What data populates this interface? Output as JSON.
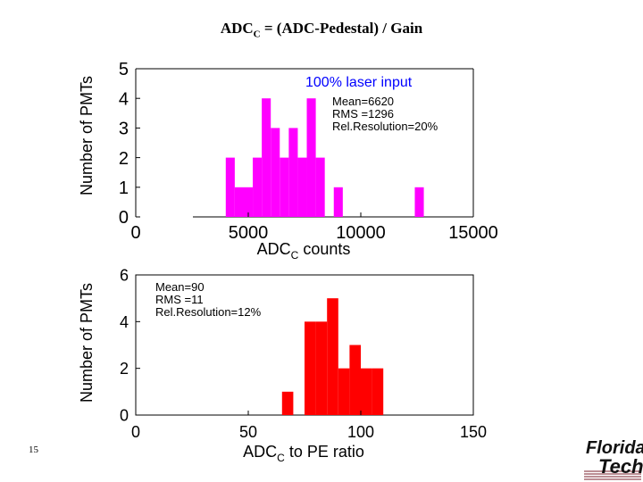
{
  "slide": {
    "title_prefix": "ADC",
    "title_sub": "C",
    "title_suffix": " = (ADC-Pedestal) / Gain",
    "page_number": "15",
    "logo_line1": "Florida",
    "logo_line2": "Tech"
  },
  "chart_data": [
    {
      "type": "histogram",
      "color": "#ff00ff",
      "ylabel": "Number of PMTs",
      "xlabel_prefix": "ADC",
      "xlabel_sub": "C",
      "xlabel_suffix": " counts",
      "xlim": [
        0,
        15000
      ],
      "ylim": [
        0,
        5
      ],
      "xticks": [
        0,
        5000,
        10000,
        15000
      ],
      "yticks": [
        0,
        1,
        2,
        3,
        4,
        5
      ],
      "title_annotation": "100% laser input",
      "title_annotation_color": "#0000ff",
      "stats": [
        "Mean=6620",
        "RMS =1296",
        "Rel.Resolution=20%"
      ],
      "bins": [
        {
          "x0": 4000,
          "x1": 4400,
          "count": 2
        },
        {
          "x0": 4400,
          "x1": 5200,
          "count": 1
        },
        {
          "x0": 5200,
          "x1": 5600,
          "count": 2
        },
        {
          "x0": 5600,
          "x1": 6000,
          "count": 4
        },
        {
          "x0": 6000,
          "x1": 6400,
          "count": 3
        },
        {
          "x0": 6400,
          "x1": 6800,
          "count": 2
        },
        {
          "x0": 6800,
          "x1": 7200,
          "count": 3
        },
        {
          "x0": 7200,
          "x1": 7600,
          "count": 2
        },
        {
          "x0": 7600,
          "x1": 8000,
          "count": 4
        },
        {
          "x0": 8000,
          "x1": 8400,
          "count": 2
        },
        {
          "x0": 8800,
          "x1": 9200,
          "count": 1
        },
        {
          "x0": 12400,
          "x1": 12800,
          "count": 1
        }
      ]
    },
    {
      "type": "histogram",
      "color": "#ff0000",
      "ylabel": "Number of PMTs",
      "xlabel_prefix": "ADC",
      "xlabel_sub": "C",
      "xlabel_suffix": " to PE ratio",
      "xlim": [
        0,
        150
      ],
      "ylim": [
        0,
        6
      ],
      "xticks": [
        0,
        50,
        100,
        150
      ],
      "yticks": [
        0,
        2,
        4,
        6
      ],
      "stats": [
        "Mean=90",
        "RMS =11",
        "Rel.Resolution=12%"
      ],
      "bins": [
        {
          "x0": 65,
          "x1": 70,
          "count": 1
        },
        {
          "x0": 75,
          "x1": 80,
          "count": 4
        },
        {
          "x0": 80,
          "x1": 85,
          "count": 4
        },
        {
          "x0": 85,
          "x1": 90,
          "count": 5
        },
        {
          "x0": 90,
          "x1": 95,
          "count": 2
        },
        {
          "x0": 95,
          "x1": 100,
          "count": 3
        },
        {
          "x0": 100,
          "x1": 105,
          "count": 2
        },
        {
          "x0": 105,
          "x1": 110,
          "count": 2
        }
      ]
    }
  ]
}
